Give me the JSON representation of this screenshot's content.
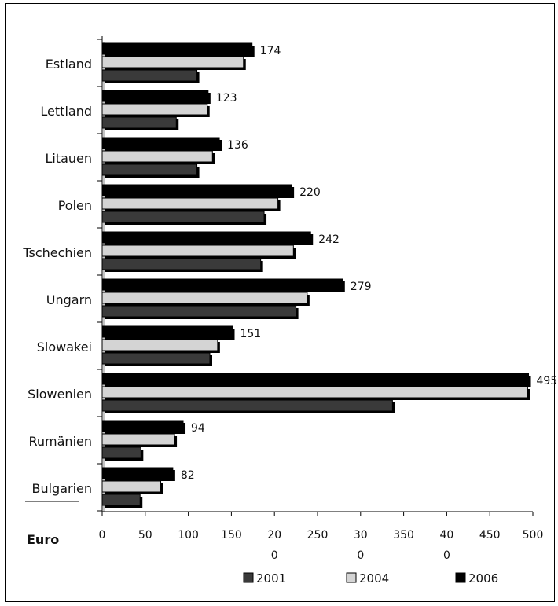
{
  "chart_data": {
    "type": "bar",
    "orientation": "horizontal",
    "categories": [
      "Estland",
      "Lettland",
      "Litauen",
      "Polen",
      "Tschechien",
      "Ungarn",
      "Slowakei",
      "Slowenien",
      "Rumänien",
      "Bulgarien"
    ],
    "series": [
      {
        "name": "2006",
        "color": "#000000",
        "values": [
          174,
          123,
          136,
          220,
          242,
          279,
          151,
          495,
          94,
          82
        ],
        "labels": [
          "174",
          "123",
          "136",
          "220",
          "242",
          "279",
          "151",
          "495",
          "94",
          "82"
        ]
      },
      {
        "name": "2004",
        "color": "#d4d4d4",
        "values": [
          164,
          122,
          128,
          204,
          222,
          238,
          134,
          494,
          84,
          68
        ]
      },
      {
        "name": "2001",
        "color": "#3a3a3a",
        "values": [
          110,
          86,
          110,
          188,
          184,
          225,
          125,
          337,
          45,
          44
        ]
      }
    ],
    "x_ticks": [
      {
        "value": 0,
        "label": "0"
      },
      {
        "value": 50,
        "label": "50"
      },
      {
        "value": 100,
        "label": "100"
      },
      {
        "value": 150,
        "label": "150"
      },
      {
        "value": 200,
        "label": "20\n0"
      },
      {
        "value": 250,
        "label": "250"
      },
      {
        "value": 300,
        "label": "30\n0"
      },
      {
        "value": 350,
        "label": "350"
      },
      {
        "value": 400,
        "label": "40\n0"
      },
      {
        "value": 450,
        "label": "450"
      },
      {
        "value": 500,
        "label": "500"
      }
    ],
    "xlim": [
      0,
      500
    ],
    "xlabel": "Euro",
    "grid": false,
    "legend": {
      "placement": "bottom",
      "order": [
        "2001",
        "2004",
        "2006"
      ]
    }
  }
}
